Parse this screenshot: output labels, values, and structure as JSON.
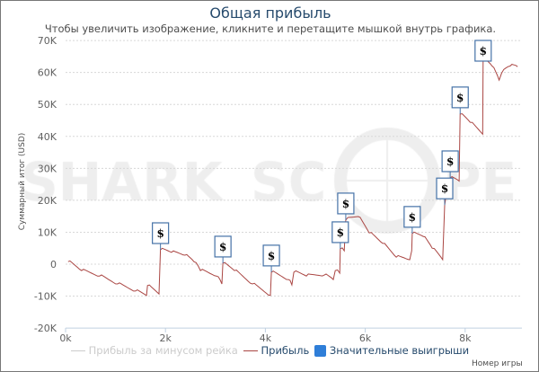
{
  "chart_data": {
    "type": "line",
    "title": "Общая прибыль",
    "subtitle": "Чтобы увеличить изображение, кликните и перетащите мышкой внутрь графика.",
    "xlabel": "Номер игры",
    "ylabel": "Суммарный итог (USD)",
    "xlim": [
      0,
      9200
    ],
    "ylim": [
      -20000,
      70000
    ],
    "x_ticks": [
      "0k",
      "2k",
      "4k",
      "6k",
      "8k"
    ],
    "y_ticks": [
      "70K",
      "60K",
      "50K",
      "40K",
      "30K",
      "20K",
      "10K",
      "0",
      "-10K",
      "-20K"
    ],
    "grid": true,
    "legend_position": "bottom",
    "series": [
      {
        "name": "Прибыль за минусом рейка",
        "color": "#cccccc",
        "hidden": true,
        "x": [],
        "y": []
      },
      {
        "name": "Прибыль",
        "color": "#aa4643",
        "x": [
          50,
          320,
          680,
          1040,
          1400,
          1620,
          1640,
          1870,
          1900,
          2120,
          2390,
          2570,
          2700,
          3020,
          3130,
          3150,
          3380,
          3740,
          4100,
          4120,
          4460,
          4530,
          4570,
          4820,
          5180,
          5360,
          5400,
          5490,
          5500,
          5580,
          5610,
          5860,
          6080,
          6350,
          6620,
          6890,
          6930,
          6940,
          7160,
          7340,
          7550,
          7590,
          7700,
          7880,
          7900,
          8100,
          8350,
          8360,
          8540,
          8680,
          8730,
          8900,
          9050
        ],
        "y": [
          800,
          -2000,
          -3700,
          -6200,
          -8400,
          -9800,
          -6700,
          -9300,
          4500,
          3700,
          2800,
          800,
          -2000,
          -3700,
          -6200,
          300,
          -2000,
          -6200,
          -9800,
          -2500,
          -4800,
          -6500,
          -2500,
          -3700,
          -3400,
          -4800,
          -2000,
          -2800,
          4800,
          4200,
          13800,
          14900,
          9800,
          6500,
          2200,
          1400,
          4200,
          9600,
          8700,
          5000,
          1400,
          18500,
          27000,
          26000,
          47000,
          44400,
          40700,
          64300,
          62000,
          57600,
          59800,
          62000,
          61800
        ]
      },
      {
        "name": "Значительные выигрыши",
        "type": "flags",
        "color": "#4572a7",
        "label": "$",
        "x": [
          1900,
          3150,
          4120,
          5500,
          5610,
          6940,
          7590,
          7700,
          7900,
          8360
        ],
        "y": [
          4500,
          300,
          -2500,
          4800,
          13800,
          9600,
          18500,
          27000,
          47000,
          64300
        ]
      }
    ]
  },
  "watermark": "SHARK SCOPE"
}
